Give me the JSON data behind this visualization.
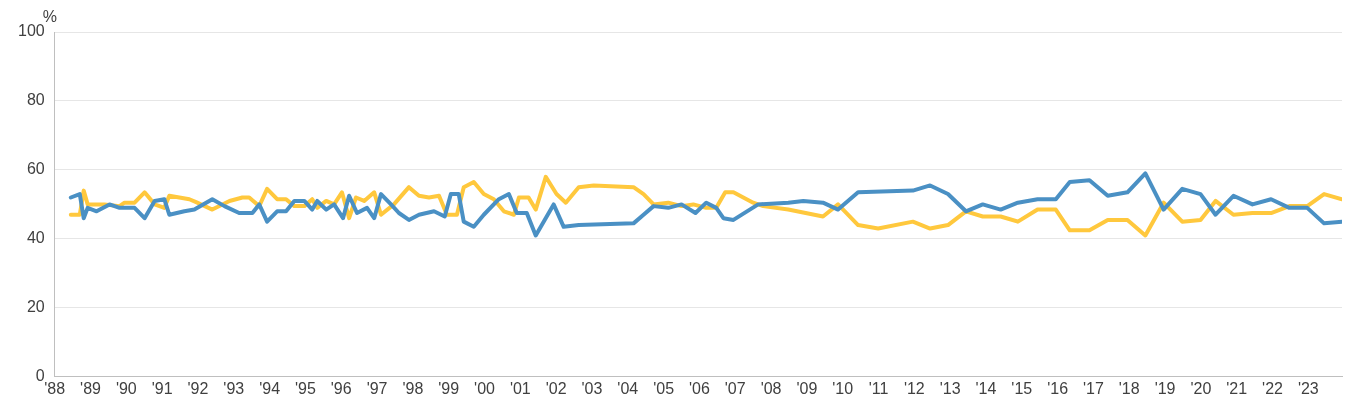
{
  "chart_data": {
    "type": "line",
    "ylabel": "%",
    "xlim": [
      1988,
      2023.94
    ],
    "ylim": [
      0,
      100
    ],
    "yticks": [
      0,
      20,
      40,
      60,
      80,
      100
    ],
    "xticks": [
      {
        "value": 1988,
        "label": "'88"
      },
      {
        "value": 1989,
        "label": "'89"
      },
      {
        "value": 1990,
        "label": "'90"
      },
      {
        "value": 1991,
        "label": "'91"
      },
      {
        "value": 1992,
        "label": "'92"
      },
      {
        "value": 1993,
        "label": "'93"
      },
      {
        "value": 1994,
        "label": "'94"
      },
      {
        "value": 1995,
        "label": "'95"
      },
      {
        "value": 1996,
        "label": "'96"
      },
      {
        "value": 1997,
        "label": "'97"
      },
      {
        "value": 1998,
        "label": "'98"
      },
      {
        "value": 1999,
        "label": "'99"
      },
      {
        "value": 2000,
        "label": "'00"
      },
      {
        "value": 2001,
        "label": "'01"
      },
      {
        "value": 2002,
        "label": "'02"
      },
      {
        "value": 2003,
        "label": "'03"
      },
      {
        "value": 2004,
        "label": "'04"
      },
      {
        "value": 2005,
        "label": "'05"
      },
      {
        "value": 2006,
        "label": "'06"
      },
      {
        "value": 2007,
        "label": "'07"
      },
      {
        "value": 2008,
        "label": "'08"
      },
      {
        "value": 2009,
        "label": "'09"
      },
      {
        "value": 2010,
        "label": "'10"
      },
      {
        "value": 2011,
        "label": "'11"
      },
      {
        "value": 2012,
        "label": "'12"
      },
      {
        "value": 2013,
        "label": "'13"
      },
      {
        "value": 2014,
        "label": "'14"
      },
      {
        "value": 2015,
        "label": "'15"
      },
      {
        "value": 2016,
        "label": "'16"
      },
      {
        "value": 2017,
        "label": "'17"
      },
      {
        "value": 2018,
        "label": "'18"
      },
      {
        "value": 2019,
        "label": "'19"
      },
      {
        "value": 2020,
        "label": "'20"
      },
      {
        "value": 2021,
        "label": "'21"
      },
      {
        "value": 2022,
        "label": "'22"
      },
      {
        "value": 2023,
        "label": "'23"
      }
    ],
    "grid": "y",
    "marker": "none",
    "line_style": "solid",
    "legend": false,
    "series": [
      {
        "color": "#4a90c4",
        "x": [
          1988.45,
          1988.7,
          1988.81,
          1988.92,
          1989.17,
          1989.53,
          1989.81,
          1990.23,
          1990.51,
          1990.79,
          1991.06,
          1991.2,
          1991.62,
          1991.9,
          1992.4,
          1992.74,
          1993.15,
          1993.52,
          1993.71,
          1993.93,
          1994.21,
          1994.46,
          1994.69,
          1994.97,
          1995.19,
          1995.33,
          1995.58,
          1995.8,
          1996.05,
          1996.22,
          1996.44,
          1996.72,
          1996.92,
          1997.11,
          1997.39,
          1997.61,
          1997.89,
          1998.17,
          1998.59,
          1998.89,
          1999.06,
          1999.28,
          1999.42,
          1999.7,
          1999.98,
          2000.4,
          2000.68,
          2000.9,
          2001.18,
          2001.43,
          2001.93,
          2002.21,
          2002.63,
          2004.16,
          2004.44,
          2004.72,
          2005.13,
          2005.5,
          2005.89,
          2006.19,
          2006.47,
          2006.67,
          2006.95,
          2007.64,
          2008.48,
          2008.9,
          2009.45,
          2009.87,
          2010.43,
          2011.96,
          2012.44,
          2012.94,
          2013.44,
          2013.91,
          2014.41,
          2014.89,
          2015.44,
          2015.95,
          2016.34,
          2016.89,
          2017.4,
          2017.95,
          2018.45,
          2018.96,
          2019.48,
          2019.99,
          2020.41,
          2020.91,
          2021.44,
          2021.96,
          2022.47,
          2022.97,
          2023.44,
          2023.94
        ],
        "values": [
          52,
          53,
          46,
          49,
          48,
          50,
          49,
          49,
          46,
          51,
          51.5,
          47,
          48,
          48.5,
          51.5,
          49.5,
          47.5,
          47.5,
          50,
          45,
          48,
          48,
          51,
          51,
          48.5,
          51,
          48.5,
          50,
          46,
          52.5,
          47.5,
          49,
          46,
          53,
          50,
          47.5,
          45.5,
          47,
          48,
          46.5,
          53,
          53,
          45,
          43.5,
          47,
          51.5,
          53,
          47.5,
          47.5,
          41,
          50,
          43.5,
          44,
          44.5,
          47,
          49.5,
          49,
          50,
          47.5,
          50.5,
          49,
          46,
          45.5,
          50,
          50.5,
          51,
          50.5,
          48.5,
          53.5,
          54,
          55.5,
          53,
          48,
          50,
          48.5,
          50.5,
          51.5,
          51.5,
          56.5,
          57,
          52.5,
          53.5,
          59,
          48.5,
          54.5,
          53,
          47,
          52.5,
          50,
          51.5,
          49,
          49,
          44.5,
          45
        ]
      },
      {
        "color": "#ffc83d",
        "x": [
          1988.45,
          1988.7,
          1988.81,
          1988.92,
          1989.39,
          1989.81,
          1989.95,
          1990.23,
          1990.51,
          1990.79,
          1991.06,
          1991.2,
          1991.76,
          1991.98,
          1992.4,
          1992.88,
          1993.24,
          1993.43,
          1993.71,
          1993.93,
          1994.21,
          1994.46,
          1994.69,
          1994.97,
          1995.19,
          1995.33,
          1995.58,
          1995.8,
          1996.02,
          1996.22,
          1996.41,
          1996.64,
          1996.92,
          1997.11,
          1997.47,
          1997.89,
          1998.17,
          1998.45,
          1998.73,
          1998.95,
          1999.23,
          1999.42,
          1999.7,
          1999.98,
          2000.26,
          2000.54,
          2000.82,
          2000.96,
          2001.23,
          2001.43,
          2001.71,
          2002.01,
          2002.27,
          2002.63,
          2003.05,
          2004.16,
          2004.44,
          2004.72,
          2005.13,
          2005.5,
          2005.83,
          2006.19,
          2006.47,
          2006.72,
          2006.95,
          2007.5,
          2007.78,
          2008.48,
          2009.45,
          2009.87,
          2010.43,
          2010.99,
          2011.96,
          2012.44,
          2012.94,
          2013.44,
          2013.91,
          2014.41,
          2014.89,
          2015.44,
          2015.95,
          2016.34,
          2016.89,
          2017.4,
          2017.95,
          2018.45,
          2018.96,
          2019.48,
          2019.99,
          2020.41,
          2020.91,
          2021.44,
          2021.96,
          2022.47,
          2022.97,
          2023.44,
          2023.94
        ],
        "values": [
          47,
          47,
          54,
          50,
          50,
          49.5,
          50.5,
          50.5,
          53.5,
          50,
          49,
          52.5,
          51.5,
          50.5,
          48.5,
          51,
          52,
          52,
          49.5,
          54.5,
          51.5,
          51.5,
          49.5,
          49.5,
          51.5,
          49,
          51,
          50,
          53.5,
          46,
          52,
          51,
          53.5,
          47,
          50,
          55,
          52.5,
          52,
          52.5,
          47,
          47,
          55,
          56.5,
          53,
          51.5,
          48,
          47,
          52,
          52,
          48.5,
          58,
          53,
          50.5,
          55,
          55.5,
          55,
          53,
          50,
          50.5,
          49.5,
          50,
          49,
          49,
          53.5,
          53.5,
          50.5,
          49.5,
          48.5,
          46.5,
          50,
          44,
          43,
          45,
          43,
          44,
          48,
          46.5,
          46.5,
          45,
          48.5,
          48.5,
          42.5,
          42.5,
          45.5,
          45.5,
          41,
          50.5,
          45,
          45.5,
          51,
          47,
          47.5,
          47.5,
          49.5,
          49.5,
          53,
          51.5
        ]
      }
    ]
  }
}
